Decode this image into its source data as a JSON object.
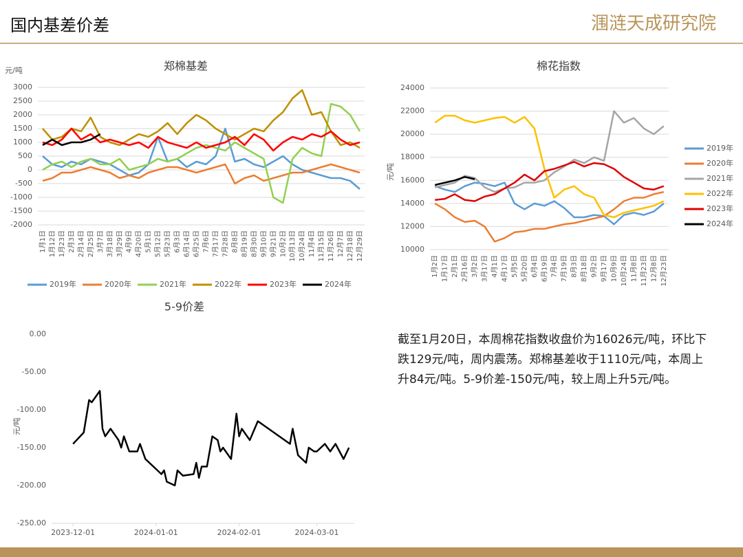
{
  "header": {
    "title": "国内基差价差",
    "logo": "涠涟天成研究院"
  },
  "text": "截至1月20日，本周棉花指数收盘价为16026元/吨，环比下跌129元/吨，周内震荡。郑棉基差收于1110元/吨，本周上升84元/吨。5-9价差-150元/吨，较上周上升5元/吨。",
  "chart_data": [
    {
      "type": "line",
      "title": "郑棉基差",
      "y_label": "元/吨",
      "legend": "bottom",
      "grid": true,
      "categories": [
        "1月1日",
        "1月12日",
        "1月23日",
        "2月3日",
        "2月14日",
        "2月25日",
        "3月7日",
        "3月18日",
        "3月29日",
        "4月9日",
        "4月20日",
        "5月1日",
        "5月12日",
        "5月23日",
        "6月3日",
        "6月14日",
        "6月25日",
        "7月6日",
        "7月17日",
        "7月28日",
        "8月8日",
        "8月19日",
        "8月30日",
        "9月10日",
        "9月21日",
        "10月2日",
        "10月13日",
        "10月24日",
        "11月4日",
        "11月15日",
        "11月26日",
        "12月7日",
        "12月18日",
        "12月29日"
      ],
      "ylim": [
        -2000,
        3000
      ],
      "yticks": [
        -2000,
        -1500,
        -1000,
        -500,
        0,
        500,
        1000,
        1500,
        2000,
        2500,
        3000
      ],
      "series": [
        {
          "name": "2019年",
          "color": "#5b9bd5",
          "values": [
            500,
            200,
            100,
            300,
            200,
            400,
            300,
            200,
            0,
            -200,
            -100,
            200,
            1200,
            300,
            400,
            100,
            300,
            200,
            500,
            1500,
            300,
            400,
            200,
            100,
            300,
            500,
            200,
            0,
            -100,
            -200,
            -300,
            -300,
            -400,
            -700
          ]
        },
        {
          "name": "2020年",
          "color": "#ed7d31",
          "values": [
            -400,
            -300,
            -100,
            -100,
            0,
            100,
            0,
            -100,
            -300,
            -200,
            -300,
            -100,
            0,
            100,
            100,
            0,
            -100,
            0,
            100,
            200,
            -500,
            -300,
            -200,
            -400,
            -300,
            -200,
            -100,
            -100,
            0,
            100,
            200,
            100,
            0,
            -100
          ]
        },
        {
          "name": "2021年",
          "color": "#92d050",
          "values": [
            0,
            200,
            300,
            100,
            300,
            400,
            200,
            200,
            400,
            0,
            100,
            200,
            400,
            300,
            400,
            600,
            800,
            900,
            800,
            700,
            1000,
            800,
            600,
            400,
            -1000,
            -1200,
            400,
            800,
            600,
            500,
            2400,
            2300,
            2000,
            1400
          ]
        },
        {
          "name": "2022年",
          "color": "#bf9000",
          "values": [
            1500,
            1100,
            1200,
            1500,
            1400,
            1900,
            1200,
            1000,
            900,
            1100,
            1300,
            1200,
            1400,
            1700,
            1300,
            1700,
            2000,
            1800,
            1500,
            1300,
            1100,
            1300,
            1500,
            1400,
            1800,
            2100,
            2600,
            2900,
            2000,
            2100,
            1400,
            900,
            1000,
            800
          ]
        },
        {
          "name": "2023年",
          "color": "#ff0000",
          "values": [
            1000,
            900,
            1100,
            1500,
            1100,
            1300,
            1000,
            1100,
            1000,
            900,
            1000,
            800,
            1200,
            1000,
            900,
            800,
            1000,
            800,
            900,
            1000,
            1200,
            900,
            1300,
            1100,
            700,
            1000,
            1200,
            1100,
            1300,
            1200,
            1400,
            1100,
            900,
            1000
          ]
        },
        {
          "name": "2024年",
          "color": "#000000",
          "values": [
            900,
            1100,
            900,
            1000,
            1000,
            1100,
            1300,
            null,
            null,
            null,
            null,
            null,
            null,
            null,
            null,
            null,
            null,
            null,
            null,
            null,
            null,
            null,
            null,
            null,
            null,
            null,
            null,
            null,
            null,
            null,
            null,
            null,
            null,
            null
          ]
        }
      ]
    },
    {
      "type": "line",
      "title": "棉花指数",
      "y_label": "元/吨",
      "legend": "right",
      "grid": true,
      "categories": [
        "1月2日",
        "1月17日",
        "2月1日",
        "2月16日",
        "3月2日",
        "3月17日",
        "4月1日",
        "4月17日",
        "5月5日",
        "5月20日",
        "6月4日",
        "6月19日",
        "7月4日",
        "7月19日",
        "8月3日",
        "8月18日",
        "9月2日",
        "9月17日",
        "10月9日",
        "10月24日",
        "11月8日",
        "11月23日",
        "12月8日",
        "12月23日"
      ],
      "ylim": [
        10000,
        24000
      ],
      "yticks": [
        10000,
        12000,
        14000,
        16000,
        18000,
        20000,
        22000,
        24000
      ],
      "series": [
        {
          "name": "2019年",
          "color": "#5b9bd5",
          "values": [
            15500,
            15200,
            15000,
            15500,
            15800,
            15700,
            15500,
            15800,
            14000,
            13500,
            14000,
            13800,
            14200,
            13600,
            12800,
            12800,
            13000,
            12900,
            12200,
            13000,
            13200,
            13000,
            13300,
            14000
          ]
        },
        {
          "name": "2020年",
          "color": "#ed7d31",
          "values": [
            14000,
            13500,
            12800,
            12400,
            12500,
            12000,
            10700,
            11000,
            11500,
            11600,
            11800,
            11800,
            12000,
            12200,
            12300,
            12500,
            12700,
            12900,
            13500,
            14200,
            14500,
            14500,
            14800,
            15000
          ]
        },
        {
          "name": "2021年",
          "color": "#a5a5a5",
          "values": [
            15400,
            15600,
            15800,
            16400,
            16200,
            15400,
            15000,
            15300,
            15400,
            15800,
            15800,
            16000,
            16700,
            17200,
            17800,
            17500,
            18000,
            17700,
            22000,
            21000,
            21400,
            20500,
            20000,
            20700
          ]
        },
        {
          "name": "2022年",
          "color": "#ffc000",
          "values": [
            21000,
            21600,
            21600,
            21200,
            21000,
            21200,
            21400,
            21500,
            21000,
            21500,
            20500,
            17000,
            14500,
            15200,
            15500,
            14800,
            14500,
            13000,
            12800,
            13200,
            13400,
            13600,
            13800,
            14200
          ]
        },
        {
          "name": "2023年",
          "color": "#e00000",
          "values": [
            14300,
            14400,
            14800,
            14300,
            14200,
            14600,
            14800,
            15300,
            15800,
            16500,
            16000,
            16800,
            17000,
            17300,
            17600,
            17200,
            17500,
            17400,
            17000,
            16300,
            15800,
            15300,
            15200,
            15500
          ]
        },
        {
          "name": "2024年",
          "color": "#000000",
          "values": [
            15600,
            15800,
            16000,
            16300,
            16100,
            null,
            null,
            null,
            null,
            null,
            null,
            null,
            null,
            null,
            null,
            null,
            null,
            null,
            null,
            null,
            null,
            null,
            null,
            null
          ]
        }
      ]
    },
    {
      "type": "line",
      "title": "5-9价差",
      "y_label": "元/吨",
      "grid": false,
      "x": [
        "2023-12-01",
        "2023-12-05",
        "2023-12-07",
        "2023-12-08",
        "2023-12-11",
        "2023-12-12",
        "2023-12-13",
        "2023-12-15",
        "2023-12-18",
        "2023-12-19",
        "2023-12-20",
        "2023-12-22",
        "2023-12-25",
        "2023-12-26",
        "2023-12-28",
        "2023-12-31",
        "2024-01-03",
        "2024-01-04",
        "2024-01-05",
        "2024-01-08",
        "2024-01-09",
        "2024-01-11",
        "2024-01-15",
        "2024-01-16",
        "2024-01-17",
        "2024-01-18",
        "2024-01-20",
        "2024-01-22",
        "2024-01-24",
        "2024-01-25",
        "2024-01-26",
        "2024-01-29",
        "2024-01-31",
        "2024-02-01",
        "2024-02-02",
        "2024-02-05",
        "2024-02-08",
        "2024-02-20",
        "2024-02-21",
        "2024-02-23",
        "2024-02-26",
        "2024-02-27",
        "2024-02-29",
        "2024-03-01",
        "2024-03-04",
        "2024-03-06",
        "2024-03-08",
        "2024-03-11",
        "2024-03-13"
      ],
      "series": [
        {
          "color": "#000000",
          "values": [
            -145,
            -130,
            -87,
            -90,
            -75,
            -125,
            -135,
            -125,
            -140,
            -150,
            -135,
            -155,
            -155,
            -145,
            -165,
            -175,
            -185,
            -180,
            -195,
            -200,
            -180,
            -187,
            -185,
            -170,
            -190,
            -175,
            -175,
            -135,
            -140,
            -155,
            -150,
            -165,
            -105,
            -135,
            -125,
            -140,
            -115,
            -145,
            -125,
            -160,
            -170,
            -150,
            -155,
            -155,
            -145,
            -155,
            -145,
            -165,
            -150
          ]
        }
      ],
      "xlim": [
        "2023-11-23",
        "2024-03-15"
      ],
      "xticks": [
        "2023-12-01",
        "2024-01-01",
        "2024-02-01",
        "2024-03-01"
      ],
      "ylim": [
        -250,
        0
      ],
      "yticks": [
        {
          "value": -250,
          "label": "-250.00"
        },
        {
          "value": -200,
          "label": "-200.00"
        },
        {
          "value": -150,
          "label": "-150.00"
        },
        {
          "value": -100,
          "label": "-100.00"
        },
        {
          "value": -50,
          "label": "-50.00"
        },
        {
          "value": 0,
          "label": "0.00"
        }
      ]
    }
  ]
}
